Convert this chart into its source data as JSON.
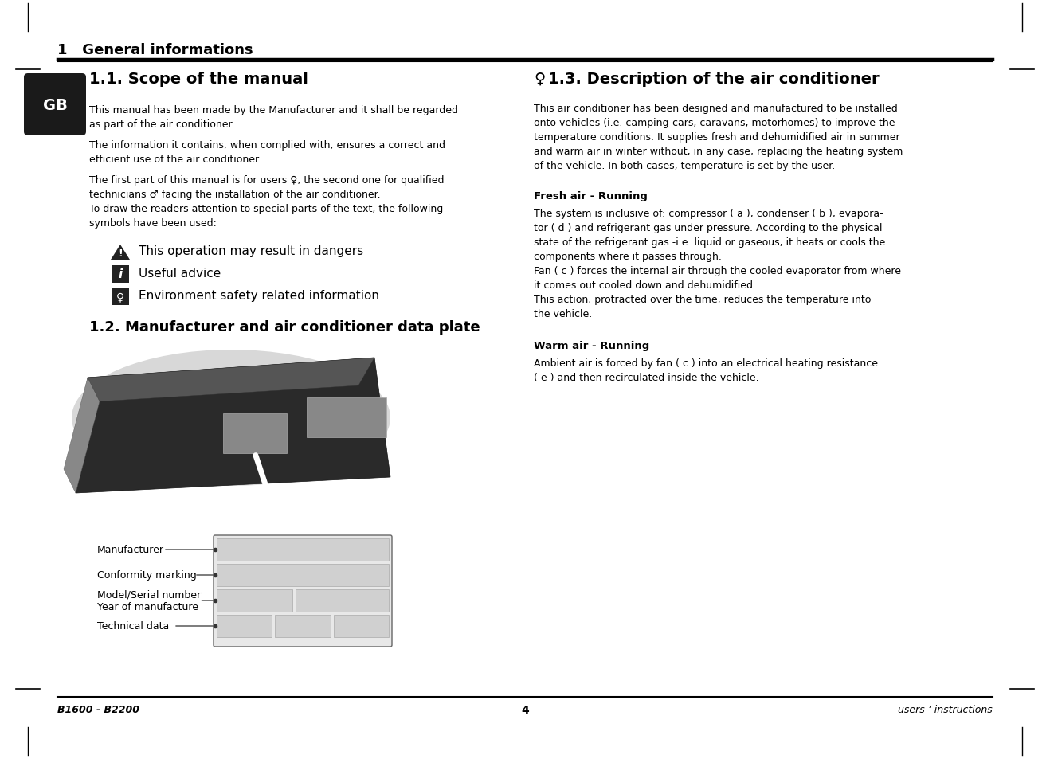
{
  "bg_color": "#ffffff",
  "header_title": "1   General informations",
  "footer_left": "B1600 - B2200",
  "footer_center": "4",
  "footer_right": "users ’ instructions",
  "section_11_title": "1.1. Scope of the manual",
  "section_11_body": [
    "This manual has been made by the Manufacturer and it shall be regarded",
    "as part of the air conditioner.",
    "",
    "The information it contains, when complied with, ensures a correct and",
    "efficient use of the air conditioner.",
    "",
    "The first part of this manual is for users ♀, the second one for qualified",
    "technicians ♂ facing the installation of the air conditioner.",
    "To draw the readers attention to special parts of the text, the following",
    "symbols have been used:"
  ],
  "section_12_title": "1.2. Manufacturer and air conditioner data plate",
  "dataplate_labels": [
    "Manufacturer",
    "Conformity marking",
    "Model/Serial number",
    "Year of manufacture",
    "Technical data"
  ],
  "section_13_title": "1.3. Description of the air conditioner",
  "section_13_intro": [
    "This air conditioner has been designed and manufactured to be installed",
    "onto vehicles (i.e. camping-cars, caravans, motorhomes) to improve the",
    "temperature conditions. It supplies fresh and dehumidified air in summer",
    "and warm air in winter without, in any case, replacing the heating system",
    "of the vehicle. In both cases, temperature is set by the user."
  ],
  "section_fresh_title": "Fresh air - Running",
  "section_fresh_body": [
    "The system is inclusive of: compressor ( a ), condenser ( b ), evapora-",
    "tor ( d ) and refrigerant gas under pressure. According to the physical",
    "state of the refrigerant gas -i.e. liquid or gaseous, it heats or cools the",
    "components where it passes through.",
    "Fan ( c ) forces the internal air through the cooled evaporator from where",
    "it comes out cooled down and dehumidified.",
    "This action, protracted over the time, reduces the temperature into",
    "the vehicle."
  ],
  "section_warm_title": "Warm air - Running",
  "section_warm_body": [
    "Ambient air is forced by fan ( c ) into an electrical heating resistance",
    "( e ) and then recirculated inside the vehicle."
  ]
}
